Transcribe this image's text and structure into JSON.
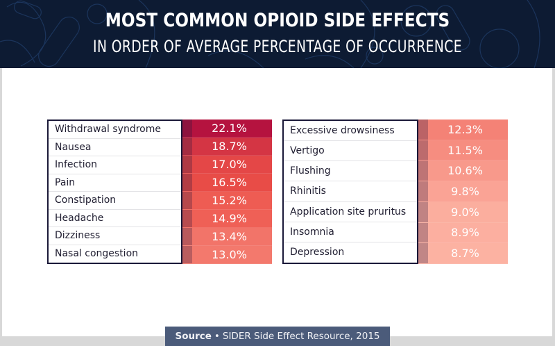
{
  "header": {
    "title": "MOST COMMON OPIOID SIDE EFFECTS",
    "subtitle": "IN ORDER OF AVERAGE PERCENTAGE OF OCCURRENCE"
  },
  "colors": {
    "header_bg": "#0d1b33",
    "label_border": "#1a1838",
    "heat_high": "#b5133f",
    "heat_low": "#fcb2a2",
    "source_bg": "#4b5b7a"
  },
  "chart_data": {
    "type": "table",
    "title": "MOST COMMON OPIOID SIDE EFFECTS",
    "subtitle": "IN ORDER OF AVERAGE PERCENTAGE OF OCCURRENCE",
    "unit": "%",
    "tables": [
      {
        "rows": [
          {
            "label": "Withdrawal syndrome",
            "value": 22.1,
            "display": "22.1%"
          },
          {
            "label": "Nausea",
            "value": 18.7,
            "display": "18.7%"
          },
          {
            "label": "Infection",
            "value": 17.0,
            "display": "17.0%"
          },
          {
            "label": "Pain",
            "value": 16.5,
            "display": "16.5%"
          },
          {
            "label": "Constipation",
            "value": 15.2,
            "display": "15.2%"
          },
          {
            "label": "Headache",
            "value": 14.9,
            "display": "14.9%"
          },
          {
            "label": "Dizziness",
            "value": 13.4,
            "display": "13.4%"
          },
          {
            "label": "Nasal congestion",
            "value": 13.0,
            "display": "13.0%"
          }
        ]
      },
      {
        "rows": [
          {
            "label": "Excessive drowsiness",
            "value": 12.3,
            "display": "12.3%"
          },
          {
            "label": "Vertigo",
            "value": 11.5,
            "display": "11.5%"
          },
          {
            "label": "Flushing",
            "value": 10.6,
            "display": "10.6%"
          },
          {
            "label": "Rhinitis",
            "value": 9.8,
            "display": "9.8%"
          },
          {
            "label": "Application site pruritus",
            "value": 9.0,
            "display": "9.0%"
          },
          {
            "label": "Insomnia",
            "value": 8.9,
            "display": "8.9%"
          },
          {
            "label": "Depression",
            "value": 8.7,
            "display": "8.7%"
          }
        ]
      }
    ]
  },
  "source": {
    "label": "Source",
    "separator": "•",
    "text": "SIDER Side Effect Resource, 2015"
  }
}
